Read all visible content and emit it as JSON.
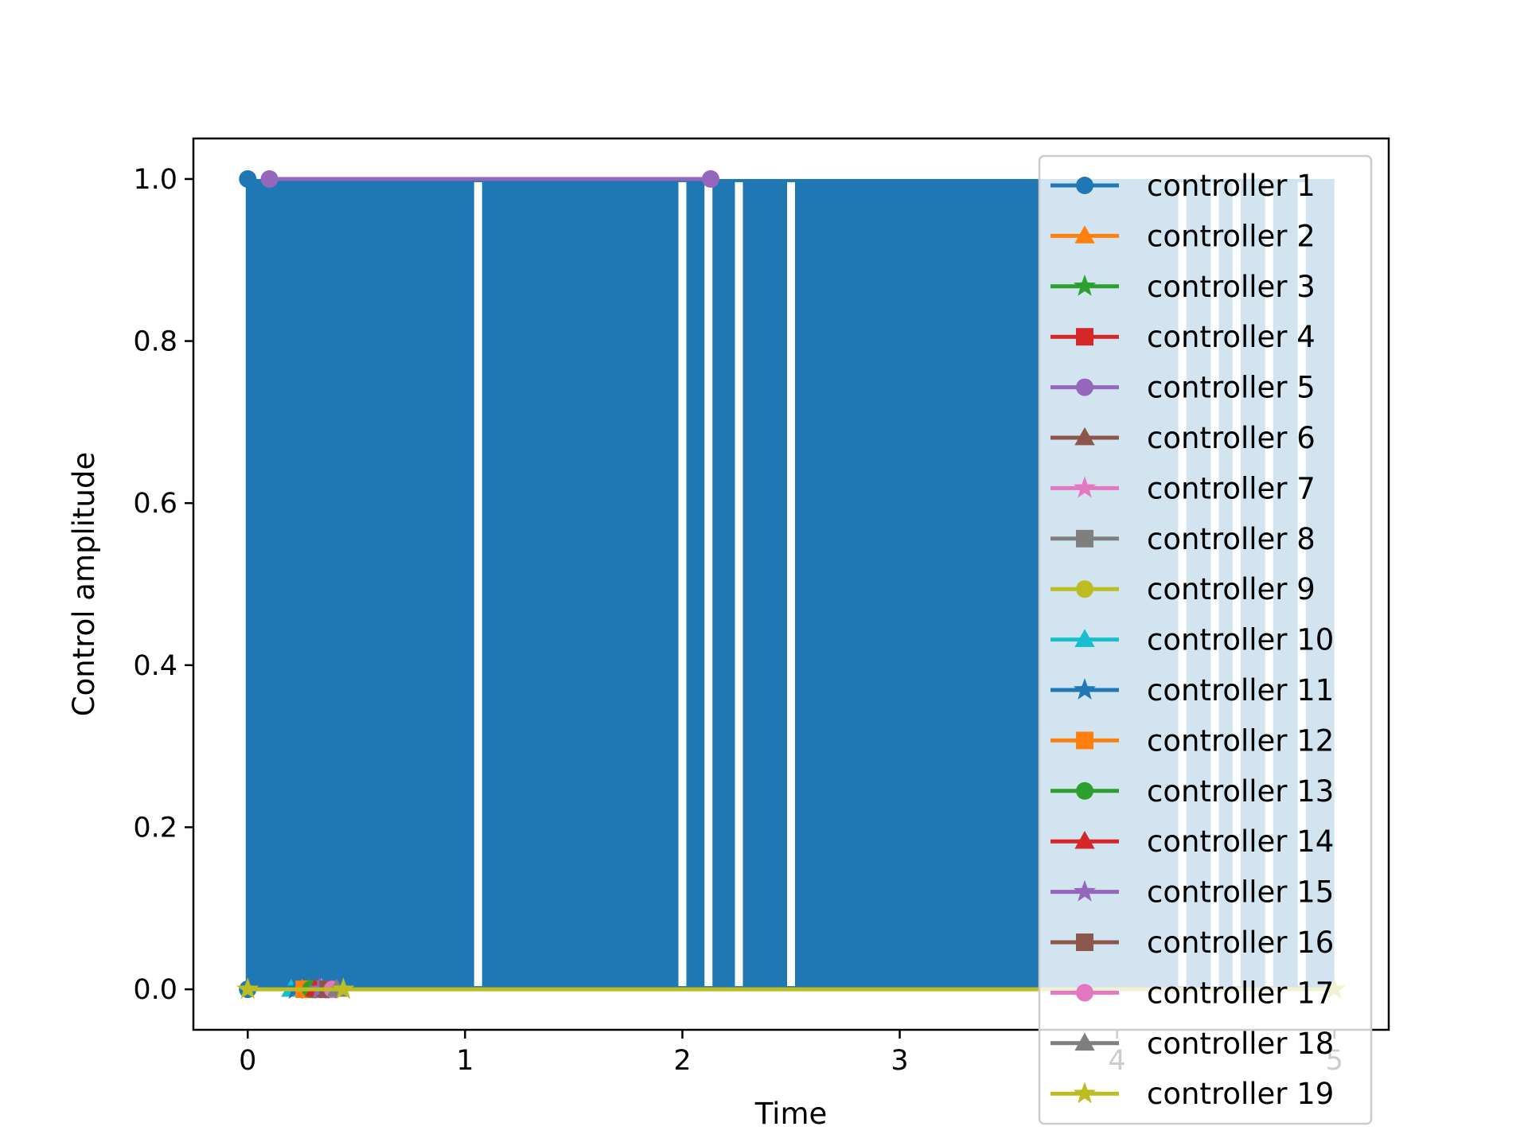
{
  "chart_data": {
    "type": "line",
    "xlabel": "Time",
    "ylabel": "Control amplitude",
    "xlim": [
      -0.25,
      5.25
    ],
    "ylim": [
      -0.05,
      1.05
    ],
    "xticks": [
      0,
      1,
      2,
      3,
      4,
      5
    ],
    "xtick_labels": [
      "0",
      "1",
      "2",
      "3",
      "4",
      "5"
    ],
    "yticks": [
      0.0,
      0.2,
      0.4,
      0.6,
      0.8,
      1.0
    ],
    "ytick_labels": [
      "0.0",
      "0.2",
      "0.4",
      "0.6",
      "0.8",
      "1.0"
    ],
    "grid": false,
    "legend_position": "right",
    "filled_region": {
      "color": "#1f77b4",
      "y_range": [
        0.0,
        1.0
      ],
      "x_range": [
        0.0,
        5.0
      ],
      "gaps_x": [
        1.06,
        2.0,
        2.12,
        2.26,
        2.5,
        4.3,
        4.45,
        4.55,
        4.7,
        4.85
      ]
    },
    "series": [
      {
        "name": "controller 1",
        "color": "#1f77b4",
        "marker": "circle",
        "values": [
          [
            0.0,
            0.0
          ],
          [
            0.0,
            1.0
          ]
        ]
      },
      {
        "name": "controller 2",
        "color": "#ff7f0e",
        "marker": "triangle",
        "values": [
          [
            0.25,
            0.0
          ]
        ]
      },
      {
        "name": "controller 3",
        "color": "#2ca02c",
        "marker": "star",
        "values": [
          [
            0.28,
            0.0
          ]
        ]
      },
      {
        "name": "controller 4",
        "color": "#d62728",
        "marker": "square",
        "values": [
          [
            0.3,
            0.0
          ]
        ]
      },
      {
        "name": "controller 5",
        "color": "#9467bd",
        "marker": "circle",
        "values": [
          [
            0.1,
            1.0
          ],
          [
            2.13,
            1.0
          ]
        ]
      },
      {
        "name": "controller 6",
        "color": "#8c564b",
        "marker": "triangle",
        "values": [
          [
            0.32,
            0.0
          ]
        ]
      },
      {
        "name": "controller 7",
        "color": "#e377c2",
        "marker": "star",
        "values": [
          [
            0.34,
            0.0
          ]
        ]
      },
      {
        "name": "controller 8",
        "color": "#7f7f7f",
        "marker": "square",
        "values": [
          [
            0.35,
            0.0
          ]
        ]
      },
      {
        "name": "controller 9",
        "color": "#bcbd22",
        "marker": "circle",
        "values": [
          [
            0.36,
            0.0
          ]
        ]
      },
      {
        "name": "controller 10",
        "color": "#17becf",
        "marker": "triangle",
        "values": [
          [
            0.2,
            0.0
          ]
        ]
      },
      {
        "name": "controller 11",
        "color": "#1f77b4",
        "marker": "star",
        "values": [
          [
            0.22,
            0.0
          ]
        ]
      },
      {
        "name": "controller 12",
        "color": "#ff7f0e",
        "marker": "square",
        "values": [
          [
            0.26,
            0.0
          ]
        ]
      },
      {
        "name": "controller 13",
        "color": "#2ca02c",
        "marker": "circle",
        "values": [
          [
            0.29,
            0.0
          ]
        ]
      },
      {
        "name": "controller 14",
        "color": "#d62728",
        "marker": "triangle",
        "values": [
          [
            0.31,
            0.0
          ]
        ]
      },
      {
        "name": "controller 15",
        "color": "#9467bd",
        "marker": "star",
        "values": [
          [
            0.33,
            0.0
          ]
        ]
      },
      {
        "name": "controller 16",
        "color": "#8c564b",
        "marker": "square",
        "values": [
          [
            0.37,
            0.0
          ]
        ]
      },
      {
        "name": "controller 17",
        "color": "#e377c2",
        "marker": "circle",
        "values": [
          [
            0.39,
            0.0
          ]
        ]
      },
      {
        "name": "controller 18",
        "color": "#7f7f7f",
        "marker": "triangle",
        "values": [
          [
            0.41,
            0.0
          ]
        ]
      },
      {
        "name": "controller 19",
        "color": "#bcbd22",
        "marker": "star",
        "values": [
          [
            0.0,
            0.0
          ],
          [
            0.44,
            0.0
          ],
          [
            5.0,
            0.0
          ]
        ]
      }
    ]
  }
}
